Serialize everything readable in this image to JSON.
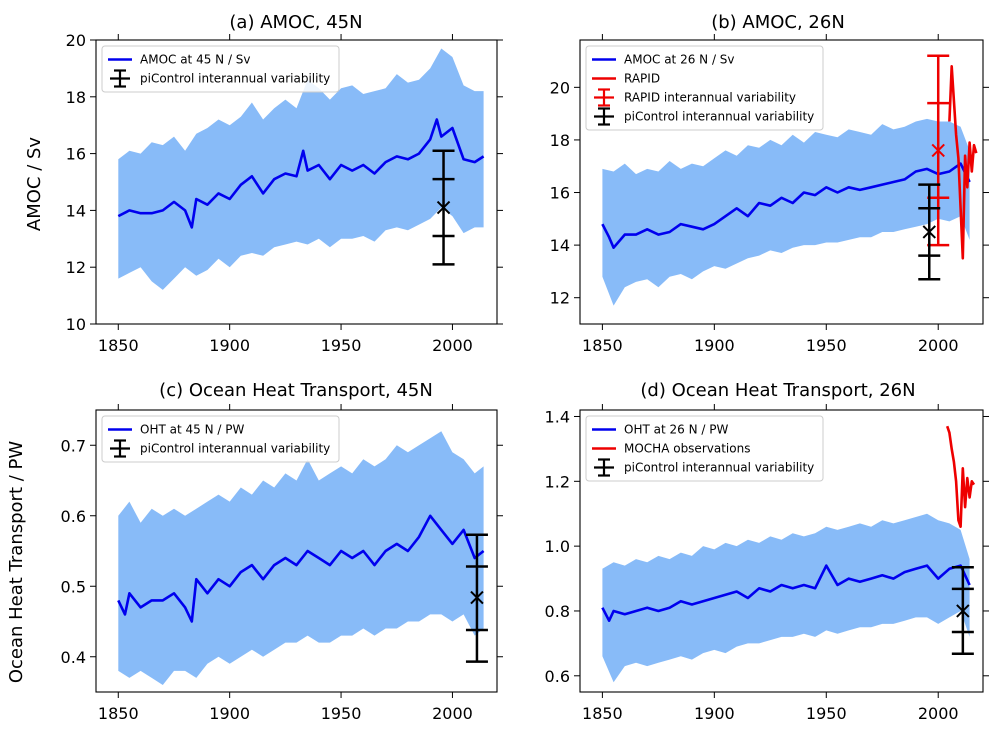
{
  "figure": {
    "ylabel_top": "AMOC / Sv",
    "ylabel_bottom": "Ocean Heat Transport / PW"
  },
  "chart_data": [
    {
      "type": "line",
      "title": "(a) AMOC, 45N",
      "ylabel": "AMOC / Sv",
      "xlim": [
        1840,
        2020
      ],
      "ylim": [
        10,
        20
      ],
      "xticks": [
        1850,
        1900,
        1950,
        2000
      ],
      "yticks": [
        10,
        12,
        14,
        16,
        18,
        20
      ],
      "legend_location": "top-left",
      "mean": {
        "name": "AMOC at 45 N / Sv",
        "color": "#0000ee",
        "x": [
          1850,
          1855,
          1860,
          1865,
          1870,
          1875,
          1880,
          1883,
          1885,
          1890,
          1895,
          1900,
          1905,
          1910,
          1915,
          1920,
          1925,
          1930,
          1933,
          1935,
          1940,
          1945,
          1950,
          1955,
          1960,
          1965,
          1970,
          1975,
          1980,
          1985,
          1990,
          1993,
          1995,
          2000,
          2005,
          2010,
          2014
        ],
        "y": [
          13.8,
          14.0,
          13.9,
          13.9,
          14.0,
          14.3,
          14.0,
          13.4,
          14.4,
          14.2,
          14.6,
          14.4,
          14.9,
          15.2,
          14.6,
          15.1,
          15.3,
          15.2,
          16.1,
          15.4,
          15.6,
          15.1,
          15.6,
          15.4,
          15.6,
          15.3,
          15.7,
          15.9,
          15.8,
          16.0,
          16.5,
          17.2,
          16.6,
          16.9,
          15.8,
          15.7,
          15.9
        ]
      },
      "spread": {
        "color": "#88bbf8",
        "x": [
          1850,
          1855,
          1860,
          1865,
          1870,
          1875,
          1880,
          1885,
          1890,
          1895,
          1900,
          1905,
          1910,
          1915,
          1920,
          1925,
          1930,
          1935,
          1940,
          1945,
          1950,
          1955,
          1960,
          1965,
          1970,
          1975,
          1980,
          1985,
          1990,
          1995,
          2000,
          2005,
          2010,
          2014
        ],
        "lower": [
          11.6,
          11.8,
          12.0,
          11.5,
          11.2,
          11.6,
          12.0,
          11.7,
          11.9,
          12.3,
          12.0,
          12.4,
          12.5,
          12.4,
          12.7,
          12.8,
          12.9,
          12.8,
          13.0,
          12.7,
          13.0,
          13.0,
          13.1,
          12.9,
          13.3,
          13.4,
          13.3,
          13.5,
          13.7,
          14.1,
          13.8,
          13.2,
          13.4,
          13.4
        ],
        "upper": [
          15.8,
          16.1,
          16.0,
          16.4,
          16.3,
          16.6,
          16.1,
          16.7,
          16.9,
          17.2,
          17.0,
          17.3,
          17.8,
          17.2,
          17.6,
          17.9,
          17.6,
          18.6,
          18.3,
          17.9,
          18.3,
          18.4,
          18.1,
          18.2,
          18.3,
          18.8,
          18.5,
          18.6,
          19.0,
          19.7,
          19.4,
          18.4,
          18.2,
          18.2
        ]
      },
      "errorbars": [
        {
          "name": "piControl interannual variability",
          "color": "#000000",
          "x": 1996,
          "center": 14.1,
          "inner": [
            13.1,
            15.1
          ],
          "outer": [
            12.1,
            16.1
          ]
        }
      ]
    },
    {
      "type": "line",
      "title": "(b) AMOC, 26N",
      "xlim": [
        1840,
        2020
      ],
      "ylim": [
        11,
        21.8
      ],
      "xticks": [
        1850,
        1900,
        1950,
        2000
      ],
      "yticks": [
        12,
        14,
        16,
        18,
        20
      ],
      "legend_location": "top-left",
      "mean": {
        "name": "AMOC at 26 N / Sv",
        "color": "#0000ee",
        "x": [
          1850,
          1853,
          1855,
          1860,
          1865,
          1870,
          1875,
          1880,
          1885,
          1890,
          1895,
          1900,
          1905,
          1910,
          1915,
          1920,
          1925,
          1930,
          1935,
          1940,
          1945,
          1950,
          1955,
          1960,
          1965,
          1970,
          1975,
          1980,
          1985,
          1990,
          1995,
          2000,
          2005,
          2010,
          2014
        ],
        "y": [
          14.8,
          14.3,
          13.9,
          14.4,
          14.4,
          14.6,
          14.4,
          14.5,
          14.8,
          14.7,
          14.6,
          14.8,
          15.1,
          15.4,
          15.1,
          15.6,
          15.5,
          15.8,
          15.6,
          16.0,
          15.9,
          16.2,
          16.0,
          16.2,
          16.1,
          16.2,
          16.3,
          16.4,
          16.5,
          16.8,
          16.9,
          16.7,
          16.8,
          17.1,
          16.4
        ]
      },
      "spread": {
        "color": "#88bbf8",
        "x": [
          1850,
          1855,
          1860,
          1865,
          1870,
          1875,
          1880,
          1885,
          1890,
          1895,
          1900,
          1905,
          1910,
          1915,
          1920,
          1925,
          1930,
          1935,
          1940,
          1945,
          1950,
          1955,
          1960,
          1965,
          1970,
          1975,
          1980,
          1985,
          1990,
          1995,
          2000,
          2005,
          2010,
          2014
        ],
        "lower": [
          12.8,
          11.7,
          12.4,
          12.6,
          12.7,
          12.4,
          12.8,
          12.9,
          12.7,
          13.0,
          13.2,
          13.1,
          13.3,
          13.5,
          13.6,
          13.8,
          13.7,
          13.9,
          14.0,
          14.0,
          14.1,
          14.1,
          14.2,
          14.3,
          14.3,
          14.5,
          14.5,
          14.6,
          14.7,
          14.8,
          15.0,
          14.9,
          15.1,
          14.2
        ],
        "upper": [
          16.9,
          16.8,
          17.1,
          16.7,
          16.9,
          16.8,
          17.2,
          16.9,
          17.1,
          17.0,
          17.3,
          17.6,
          17.4,
          17.8,
          17.7,
          18.0,
          17.8,
          18.2,
          17.9,
          18.3,
          18.2,
          18.1,
          18.4,
          18.3,
          18.2,
          18.6,
          18.4,
          18.5,
          18.7,
          18.8,
          18.7,
          18.7,
          18.5,
          17.6
        ]
      },
      "observations": {
        "name": "RAPID",
        "color": "#ee0000",
        "x": [
          2005,
          2006,
          2007,
          2008,
          2009,
          2010,
          2011,
          2012,
          2013,
          2014,
          2015,
          2016,
          2017
        ],
        "y": [
          18.7,
          20.8,
          19.5,
          18.2,
          17.3,
          15.4,
          13.5,
          17.4,
          16.2,
          17.9,
          16.8,
          17.8,
          17.5
        ]
      },
      "errorbars": [
        {
          "name": "RAPID interannual variability",
          "color": "#ee0000",
          "x": 2000,
          "center": 17.6,
          "inner": [
            15.8,
            19.4
          ],
          "outer": [
            14.0,
            21.2
          ]
        },
        {
          "name": "piControl interannual variability",
          "color": "#000000",
          "x": 1996,
          "center": 14.5,
          "inner": [
            13.6,
            15.4
          ],
          "outer": [
            12.7,
            16.3
          ]
        }
      ]
    },
    {
      "type": "line",
      "title": "(c) Ocean Heat Transport, 45N",
      "ylabel": "Ocean Heat Transport / PW",
      "xlim": [
        1840,
        2020
      ],
      "ylim": [
        0.35,
        0.75
      ],
      "xticks": [
        1850,
        1900,
        1950,
        2000
      ],
      "yticks": [
        0.4,
        0.5,
        0.6,
        0.7
      ],
      "legend_location": "top-left",
      "mean": {
        "name": "OHT at 45 N / PW",
        "color": "#0000ee",
        "x": [
          1850,
          1853,
          1855,
          1860,
          1865,
          1870,
          1875,
          1880,
          1883,
          1885,
          1890,
          1895,
          1900,
          1905,
          1910,
          1915,
          1920,
          1925,
          1930,
          1935,
          1940,
          1945,
          1950,
          1955,
          1960,
          1965,
          1970,
          1975,
          1980,
          1985,
          1990,
          1995,
          2000,
          2005,
          2010,
          2014
        ],
        "y": [
          0.48,
          0.46,
          0.49,
          0.47,
          0.48,
          0.48,
          0.49,
          0.47,
          0.45,
          0.51,
          0.49,
          0.51,
          0.5,
          0.52,
          0.53,
          0.51,
          0.53,
          0.54,
          0.53,
          0.55,
          0.54,
          0.53,
          0.55,
          0.54,
          0.55,
          0.53,
          0.55,
          0.56,
          0.55,
          0.57,
          0.6,
          0.58,
          0.56,
          0.58,
          0.54,
          0.55
        ]
      },
      "spread": {
        "color": "#88bbf8",
        "x": [
          1850,
          1855,
          1860,
          1865,
          1870,
          1875,
          1880,
          1885,
          1890,
          1895,
          1900,
          1905,
          1910,
          1915,
          1920,
          1925,
          1930,
          1935,
          1940,
          1945,
          1950,
          1955,
          1960,
          1965,
          1970,
          1975,
          1980,
          1985,
          1990,
          1995,
          2000,
          2005,
          2010,
          2014
        ],
        "lower": [
          0.38,
          0.37,
          0.38,
          0.37,
          0.36,
          0.38,
          0.38,
          0.37,
          0.39,
          0.4,
          0.39,
          0.4,
          0.41,
          0.4,
          0.41,
          0.42,
          0.42,
          0.43,
          0.42,
          0.42,
          0.43,
          0.43,
          0.44,
          0.43,
          0.44,
          0.44,
          0.45,
          0.45,
          0.46,
          0.46,
          0.45,
          0.46,
          0.43,
          0.44
        ],
        "upper": [
          0.6,
          0.62,
          0.59,
          0.61,
          0.6,
          0.61,
          0.6,
          0.61,
          0.62,
          0.63,
          0.62,
          0.64,
          0.63,
          0.65,
          0.64,
          0.66,
          0.65,
          0.68,
          0.65,
          0.66,
          0.67,
          0.66,
          0.68,
          0.67,
          0.68,
          0.7,
          0.69,
          0.7,
          0.71,
          0.72,
          0.69,
          0.68,
          0.66,
          0.67
        ]
      },
      "errorbars": [
        {
          "name": "piControl interannual variability",
          "color": "#000000",
          "x": 2011,
          "center": 0.484,
          "inner": [
            0.438,
            0.528
          ],
          "outer": [
            0.393,
            0.573
          ]
        }
      ]
    },
    {
      "type": "line",
      "title": "(d) Ocean Heat Transport, 26N",
      "xlim": [
        1840,
        2020
      ],
      "ylim": [
        0.55,
        1.42
      ],
      "xticks": [
        1850,
        1900,
        1950,
        2000
      ],
      "yticks": [
        0.6,
        0.8,
        1.0,
        1.2,
        1.4
      ],
      "legend_location": "top-left",
      "mean": {
        "name": "OHT at 26 N / PW",
        "color": "#0000ee",
        "x": [
          1850,
          1853,
          1855,
          1860,
          1865,
          1870,
          1875,
          1880,
          1885,
          1890,
          1895,
          1900,
          1905,
          1910,
          1915,
          1920,
          1925,
          1930,
          1935,
          1940,
          1945,
          1950,
          1955,
          1960,
          1965,
          1970,
          1975,
          1980,
          1985,
          1990,
          1995,
          2000,
          2005,
          2010,
          2014
        ],
        "y": [
          0.81,
          0.77,
          0.8,
          0.79,
          0.8,
          0.81,
          0.8,
          0.81,
          0.83,
          0.82,
          0.83,
          0.84,
          0.85,
          0.86,
          0.84,
          0.87,
          0.86,
          0.88,
          0.87,
          0.88,
          0.87,
          0.94,
          0.88,
          0.9,
          0.89,
          0.9,
          0.91,
          0.9,
          0.92,
          0.93,
          0.94,
          0.9,
          0.93,
          0.94,
          0.88
        ]
      },
      "spread": {
        "color": "#88bbf8",
        "x": [
          1850,
          1855,
          1860,
          1865,
          1870,
          1875,
          1880,
          1885,
          1890,
          1895,
          1900,
          1905,
          1910,
          1915,
          1920,
          1925,
          1930,
          1935,
          1940,
          1945,
          1950,
          1955,
          1960,
          1965,
          1970,
          1975,
          1980,
          1985,
          1990,
          1995,
          2000,
          2005,
          2010,
          2014
        ],
        "lower": [
          0.66,
          0.58,
          0.63,
          0.64,
          0.63,
          0.64,
          0.65,
          0.66,
          0.65,
          0.67,
          0.68,
          0.67,
          0.69,
          0.7,
          0.7,
          0.71,
          0.72,
          0.72,
          0.73,
          0.72,
          0.74,
          0.73,
          0.74,
          0.75,
          0.75,
          0.76,
          0.76,
          0.77,
          0.78,
          0.78,
          0.76,
          0.78,
          0.8,
          0.72
        ],
        "upper": [
          0.93,
          0.95,
          0.94,
          0.96,
          0.95,
          0.97,
          0.96,
          0.98,
          0.97,
          1.0,
          0.99,
          1.01,
          1.0,
          1.02,
          1.01,
          1.03,
          1.02,
          1.04,
          1.03,
          1.04,
          1.06,
          1.05,
          1.06,
          1.07,
          1.06,
          1.08,
          1.07,
          1.08,
          1.09,
          1.1,
          1.08,
          1.07,
          1.05,
          0.96
        ]
      },
      "observations": {
        "name": "MOCHA observations",
        "color": "#ee0000",
        "x": [
          2004,
          2005,
          2006,
          2007,
          2008,
          2009,
          2010,
          2011,
          2012,
          2013,
          2014,
          2015,
          2016
        ],
        "y": [
          1.37,
          1.35,
          1.3,
          1.26,
          1.2,
          1.08,
          1.06,
          1.24,
          1.12,
          1.21,
          1.15,
          1.2,
          1.19
        ]
      },
      "errorbars": [
        {
          "name": "piControl interannual variability",
          "color": "#000000",
          "x": 2011,
          "center": 0.8,
          "inner": [
            0.735,
            0.868
          ],
          "outer": [
            0.668,
            0.935
          ]
        }
      ]
    }
  ]
}
